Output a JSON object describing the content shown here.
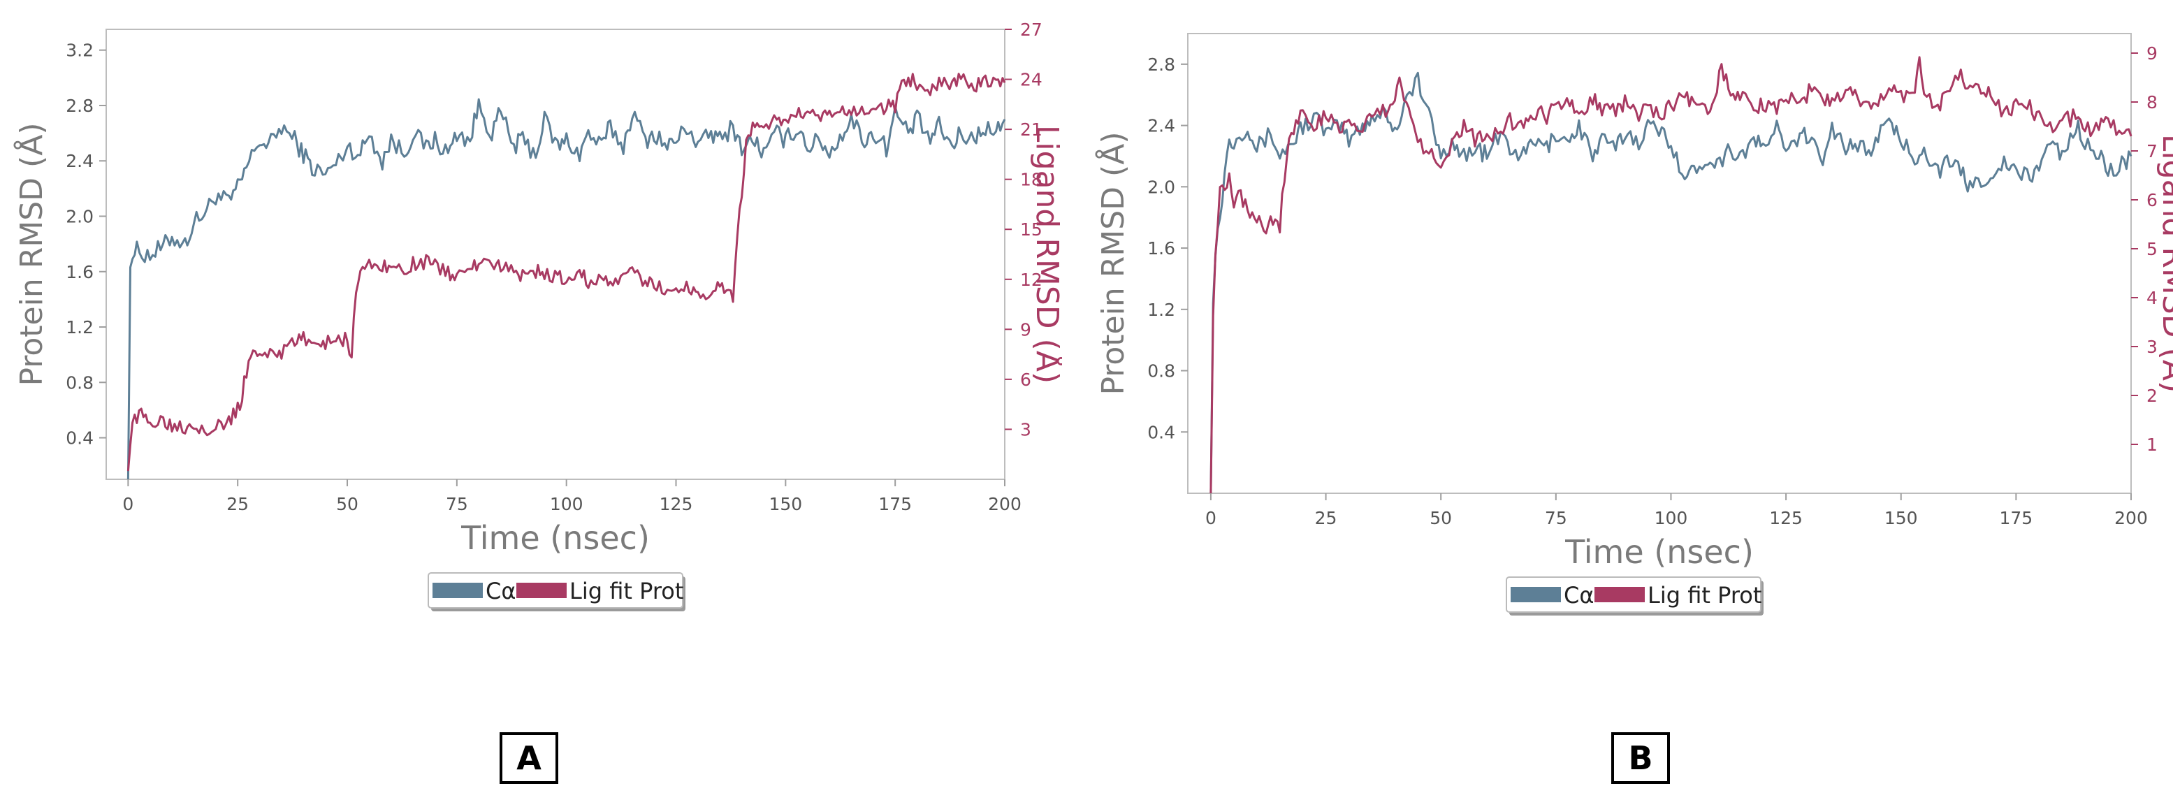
{
  "panels": [
    {
      "label": "A",
      "chart_data": {
        "type": "line",
        "xlabel": "Time (nsec)",
        "ylabel_left": "Protein RMSD (Å)",
        "ylabel_right": "Ligand RMSD (Å)",
        "xlim": [
          -5,
          200
        ],
        "ylim_left": [
          0.1,
          3.35
        ],
        "ylim_right": [
          0,
          27
        ],
        "x_ticks": [
          0,
          25,
          50,
          75,
          100,
          125,
          150,
          175,
          200
        ],
        "y_left_ticks": [
          0.4,
          0.8,
          1.2,
          1.6,
          2.0,
          2.4,
          2.8,
          3.2
        ],
        "y_right_ticks": [
          3,
          6,
          9,
          12,
          15,
          18,
          21,
          24,
          27
        ],
        "y_left_tick_labels": [
          "0.4",
          "0.8",
          "1.2",
          "1.6",
          "2.0",
          "2.4",
          "2.8",
          "3.2"
        ],
        "y_right_tick_labels": [
          "3",
          "6",
          "9",
          "12",
          "15",
          "18",
          "21",
          "24",
          "27"
        ],
        "legend": [
          "Cα",
          "Lig fit Prot"
        ],
        "legend_position": "bottom-center",
        "grid": false,
        "series": [
          {
            "name": "Cα",
            "color": "#5d7f96",
            "axis": "left",
            "x": [
              0,
              0.5,
              2,
              5,
              8,
              10,
              13,
              15,
              18,
              20,
              23,
              25,
              27,
              30,
              32,
              35,
              38,
              40,
              42,
              45,
              48,
              50,
              53,
              55,
              58,
              60,
              63,
              65,
              68,
              70,
              73,
              75,
              78,
              80,
              83,
              85,
              88,
              90,
              93,
              95,
              98,
              100,
              103,
              105,
              108,
              110,
              113,
              115,
              118,
              120,
              123,
              125,
              128,
              130,
              133,
              135,
              138,
              140,
              143,
              145,
              148,
              150,
              153,
              155,
              158,
              160,
              163,
              165,
              168,
              170,
              173,
              175,
              178,
              180,
              183,
              185,
              188,
              190,
              193,
              195,
              198,
              200
            ],
            "y": [
              0.1,
              1.7,
              1.75,
              1.72,
              1.78,
              1.85,
              1.8,
              1.95,
              2.05,
              2.15,
              2.1,
              2.2,
              2.35,
              2.55,
              2.5,
              2.65,
              2.55,
              2.45,
              2.35,
              2.3,
              2.4,
              2.5,
              2.45,
              2.6,
              2.4,
              2.55,
              2.45,
              2.6,
              2.5,
              2.55,
              2.45,
              2.6,
              2.55,
              2.8,
              2.6,
              2.75,
              2.5,
              2.55,
              2.45,
              2.7,
              2.5,
              2.55,
              2.45,
              2.6,
              2.5,
              2.65,
              2.5,
              2.75,
              2.55,
              2.6,
              2.5,
              2.55,
              2.65,
              2.5,
              2.6,
              2.55,
              2.65,
              2.5,
              2.55,
              2.45,
              2.6,
              2.55,
              2.65,
              2.5,
              2.55,
              2.45,
              2.6,
              2.7,
              2.55,
              2.6,
              2.5,
              2.75,
              2.6,
              2.7,
              2.55,
              2.65,
              2.5,
              2.6,
              2.55,
              2.65,
              2.6,
              2.7
            ]
          },
          {
            "name": "Lig fit Prot",
            "color": "#a83a62",
            "axis": "right",
            "x": [
              0,
              0.5,
              1,
              3,
              5,
              8,
              10,
              13,
              15,
              18,
              20,
              23,
              25,
              26,
              27,
              28,
              30,
              33,
              35,
              38,
              40,
              43,
              45,
              48,
              50,
              51,
              52,
              53,
              55,
              58,
              60,
              63,
              65,
              68,
              70,
              73,
              75,
              78,
              80,
              83,
              85,
              88,
              90,
              93,
              95,
              98,
              100,
              103,
              105,
              108,
              110,
              113,
              115,
              118,
              120,
              123,
              125,
              128,
              130,
              133,
              135,
              137,
              138,
              139,
              140,
              141,
              142,
              143,
              145,
              148,
              150,
              153,
              155,
              158,
              160,
              163,
              165,
              168,
              170,
              173,
              175,
              176,
              178,
              180,
              183,
              185,
              188,
              190,
              193,
              195,
              198,
              200
            ],
            "y": [
              0.5,
              2.5,
              3.5,
              3.8,
              3.5,
              3.6,
              3.3,
              3.2,
              3.3,
              3.1,
              3.2,
              3.4,
              4.2,
              5.0,
              6.5,
              7.5,
              7.4,
              7.8,
              7.6,
              8.2,
              8.4,
              8.3,
              8.2,
              8.5,
              8.3,
              7.5,
              11.5,
              12.5,
              12.8,
              12.9,
              12.7,
              12.6,
              12.9,
              13.0,
              12.9,
              12.4,
              12.2,
              12.6,
              13.0,
              12.6,
              12.9,
              12.4,
              12.2,
              12.5,
              12.3,
              12.1,
              12.0,
              12.3,
              11.9,
              12.1,
              11.8,
              11.9,
              12.5,
              11.8,
              11.7,
              11.4,
              11.2,
              11.6,
              11.1,
              11.3,
              11.5,
              11.2,
              11.0,
              15.0,
              17.0,
              20.0,
              21.0,
              21.3,
              21.2,
              21.6,
              21.5,
              21.9,
              21.8,
              21.7,
              21.9,
              22.0,
              21.9,
              22.2,
              22.1,
              22.4,
              22.3,
              23.5,
              24.0,
              23.8,
              23.5,
              23.9,
              23.7,
              24.2,
              23.5,
              23.9,
              23.6,
              23.8
            ]
          }
        ]
      }
    },
    {
      "label": "B",
      "chart_data": {
        "type": "line",
        "xlabel": "Time (nsec)",
        "ylabel_left": "Protein RMSD (Å)",
        "ylabel_right": "Ligand RMSD (Å)",
        "xlim": [
          -5,
          200
        ],
        "ylim_left": [
          0,
          3.0
        ],
        "ylim_right": [
          0,
          9.4
        ],
        "x_ticks": [
          0,
          25,
          50,
          75,
          100,
          125,
          150,
          175,
          200
        ],
        "y_left_ticks": [
          0.4,
          0.8,
          1.2,
          1.6,
          2.0,
          2.4,
          2.8
        ],
        "y_right_ticks": [
          1,
          2,
          3,
          4,
          5,
          6,
          7,
          8,
          9
        ],
        "y_left_tick_labels": [
          "0.4",
          "0.8",
          "1.2",
          "1.6",
          "2.0",
          "2.4",
          "2.8"
        ],
        "y_right_tick_labels": [
          "1",
          "2",
          "3",
          "4",
          "5",
          "6",
          "7",
          "8",
          "9"
        ],
        "legend": [
          "Cα",
          "Lig fit Prot"
        ],
        "legend_position": "bottom-center",
        "grid": false,
        "series": [
          {
            "name": "Cα",
            "color": "#5d7f96",
            "axis": "left",
            "x": [
              0,
              0.5,
              1,
              2,
              3,
              4,
              5,
              8,
              10,
              13,
              15,
              18,
              20,
              23,
              25,
              28,
              30,
              33,
              35,
              38,
              40,
              42,
              45,
              48,
              50,
              53,
              55,
              58,
              60,
              63,
              65,
              68,
              70,
              73,
              75,
              78,
              80,
              83,
              85,
              88,
              90,
              93,
              95,
              98,
              100,
              103,
              105,
              108,
              110,
              113,
              115,
              118,
              120,
              123,
              125,
              128,
              130,
              133,
              135,
              138,
              140,
              143,
              145,
              148,
              150,
              153,
              155,
              158,
              160,
              163,
              165,
              168,
              170,
              173,
              175,
              178,
              180,
              183,
              185,
              188,
              190,
              193,
              195,
              198,
              200
            ],
            "y": [
              0.0,
              1.3,
              1.6,
              1.8,
              2.1,
              2.3,
              2.3,
              2.4,
              2.25,
              2.35,
              2.2,
              2.3,
              2.4,
              2.45,
              2.35,
              2.4,
              2.3,
              2.4,
              2.45,
              2.5,
              2.35,
              2.55,
              2.7,
              2.4,
              2.2,
              2.3,
              2.2,
              2.25,
              2.2,
              2.35,
              2.25,
              2.2,
              2.3,
              2.25,
              2.35,
              2.3,
              2.4,
              2.2,
              2.3,
              2.25,
              2.35,
              2.3,
              2.4,
              2.35,
              2.3,
              2.05,
              2.1,
              2.2,
              2.15,
              2.25,
              2.2,
              2.3,
              2.25,
              2.4,
              2.2,
              2.35,
              2.3,
              2.2,
              2.4,
              2.25,
              2.3,
              2.2,
              2.35,
              2.4,
              2.3,
              2.2,
              2.25,
              2.1,
              2.15,
              2.1,
              2.0,
              2.05,
              2.1,
              2.15,
              2.1,
              2.05,
              2.15,
              2.3,
              2.2,
              2.4,
              2.3,
              2.2,
              2.1,
              2.15,
              2.2
            ]
          },
          {
            "name": "Lig fit Prot",
            "color": "#a83a62",
            "axis": "right",
            "x": [
              0,
              0.5,
              1,
              2,
              3,
              4,
              5,
              6,
              8,
              10,
              12,
              13,
              15,
              16,
              17,
              18,
              20,
              23,
              25,
              28,
              30,
              33,
              35,
              38,
              40,
              41,
              42,
              43,
              45,
              48,
              50,
              53,
              55,
              58,
              60,
              63,
              65,
              68,
              70,
              73,
              75,
              78,
              80,
              83,
              85,
              88,
              90,
              93,
              95,
              98,
              100,
              103,
              105,
              108,
              110,
              111,
              113,
              115,
              118,
              120,
              123,
              125,
              128,
              130,
              133,
              135,
              138,
              140,
              143,
              145,
              148,
              150,
              153,
              154,
              155,
              158,
              160,
              163,
              165,
              168,
              170,
              173,
              175,
              178,
              180,
              183,
              185,
              188,
              190,
              193,
              195,
              198,
              200
            ],
            "y": [
              0.0,
              3.8,
              5.0,
              6.2,
              6.3,
              6.5,
              6.0,
              6.2,
              5.8,
              5.7,
              5.4,
              5.6,
              5.5,
              6.5,
              7.2,
              7.5,
              7.8,
              7.5,
              7.7,
              7.4,
              7.6,
              7.5,
              7.7,
              7.8,
              8.0,
              8.6,
              8.2,
              7.8,
              7.2,
              7.0,
              6.8,
              7.2,
              7.5,
              7.2,
              7.4,
              7.3,
              7.6,
              7.5,
              7.8,
              7.7,
              7.9,
              8.0,
              7.8,
              8.1,
              7.9,
              7.8,
              8.0,
              7.7,
              7.9,
              7.8,
              7.9,
              8.1,
              8.0,
              7.8,
              8.2,
              8.8,
              8.0,
              8.1,
              7.9,
              8.0,
              7.8,
              8.1,
              8.0,
              8.2,
              8.1,
              8.0,
              8.2,
              8.1,
              7.9,
              8.0,
              8.2,
              8.1,
              8.3,
              9.0,
              8.2,
              7.8,
              8.3,
              8.5,
              8.2,
              8.3,
              8.0,
              7.8,
              8.0,
              7.9,
              7.7,
              7.5,
              7.6,
              7.7,
              7.4,
              7.5,
              7.6,
              7.4,
              7.3
            ]
          }
        ]
      }
    }
  ]
}
